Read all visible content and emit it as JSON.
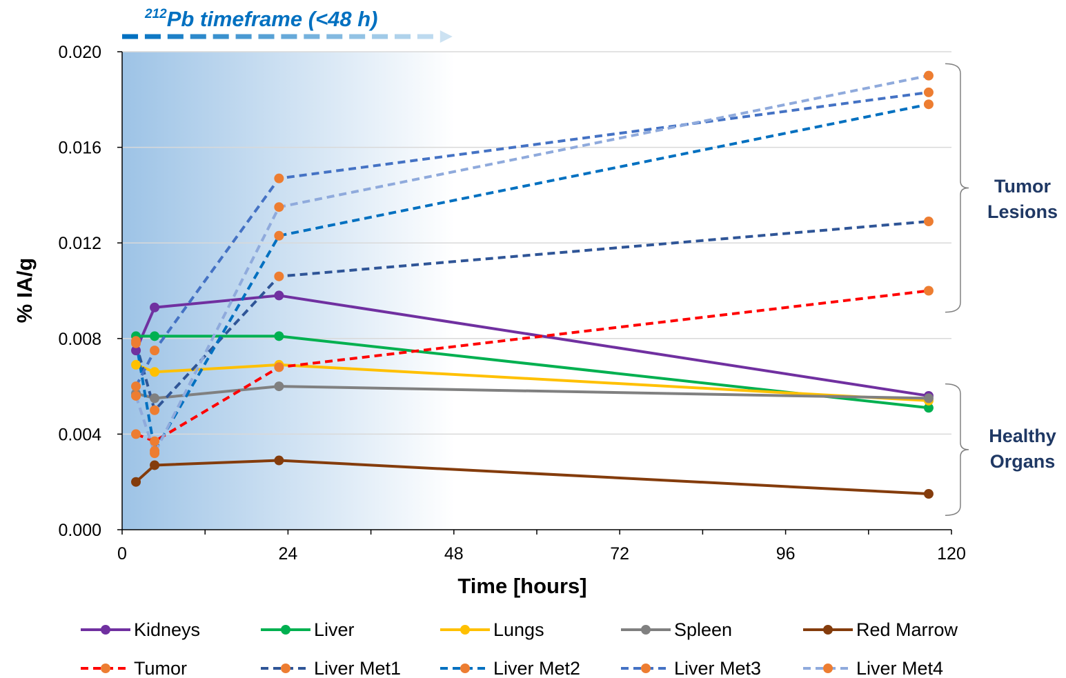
{
  "chart_data": {
    "type": "line",
    "xlabel": "Time [hours]",
    "ylabel": "% IA/g",
    "xlim": [
      0,
      120
    ],
    "ylim": [
      0,
      0.02
    ],
    "x_ticks": [
      "0",
      "24",
      "48",
      "72",
      "96",
      "120"
    ],
    "y_ticks": [
      "0.000",
      "0.004",
      "0.008",
      "0.012",
      "0.016",
      "0.020"
    ],
    "grid": "horizontal",
    "legend_position": "bottom",
    "banner": {
      "superscript": "212",
      "text": "Pb timeframe (<48 h)",
      "range_hours": [
        0,
        48
      ],
      "color": "#0070c0"
    },
    "groups": [
      {
        "label_line1": "Tumor",
        "label_line2": "Lesions",
        "range": [
          0.0091,
          0.0195
        ]
      },
      {
        "label_line1": "Healthy",
        "label_line2": "Organs",
        "range": [
          0.0006,
          0.0061
        ]
      }
    ],
    "series": [
      {
        "name": "Kidneys",
        "color": "#7030a0",
        "dash": false,
        "marker": "#7030a0",
        "x": [
          2,
          4.7,
          22.7,
          116.7
        ],
        "y": [
          0.0075,
          0.0093,
          0.0098,
          0.0056
        ]
      },
      {
        "name": "Liver",
        "color": "#00b050",
        "dash": false,
        "marker": "#00b050",
        "x": [
          2,
          4.7,
          22.7,
          116.7
        ],
        "y": [
          0.0081,
          0.0081,
          0.0081,
          0.0051
        ]
      },
      {
        "name": "Lungs",
        "color": "#ffc000",
        "dash": false,
        "marker": "#ffc000",
        "x": [
          2,
          4.7,
          22.7,
          116.7
        ],
        "y": [
          0.0069,
          0.0066,
          0.0069,
          0.0054
        ]
      },
      {
        "name": "Spleen",
        "color": "#808080",
        "dash": false,
        "marker": "#808080",
        "x": [
          2,
          4.7,
          22.7,
          116.7
        ],
        "y": [
          0.0057,
          0.0055,
          0.006,
          0.0055
        ]
      },
      {
        "name": "Red Marrow",
        "color": "#843c0c",
        "dash": false,
        "marker": "#843c0c",
        "x": [
          2,
          4.7,
          22.7,
          116.7
        ],
        "y": [
          0.002,
          0.0027,
          0.0029,
          0.0015
        ]
      },
      {
        "name": "Tumor",
        "color": "#ff0000",
        "dash": true,
        "marker": "#ed7d31",
        "x": [
          2,
          4.7,
          22.7,
          116.7
        ],
        "y": [
          0.004,
          0.0037,
          0.0068,
          0.01
        ]
      },
      {
        "name": "Liver Met1",
        "color": "#2f5597",
        "dash": true,
        "marker": "#ed7d31",
        "x": [
          2,
          4.7,
          22.7,
          116.7
        ],
        "y": [
          0.0078,
          0.005,
          0.0106,
          0.0129
        ]
      },
      {
        "name": "Liver Met2",
        "color": "#0070c0",
        "dash": true,
        "marker": "#ed7d31",
        "x": [
          2,
          4.7,
          22.7,
          116.7
        ],
        "y": [
          0.0079,
          0.0033,
          0.0123,
          0.0178
        ]
      },
      {
        "name": "Liver Met3",
        "color": "#4472c4",
        "dash": true,
        "marker": "#ed7d31",
        "x": [
          2,
          4.7,
          22.7,
          116.7
        ],
        "y": [
          0.006,
          0.0075,
          0.0147,
          0.0183
        ]
      },
      {
        "name": "Liver Met4",
        "color": "#8faadc",
        "dash": true,
        "marker": "#ed7d31",
        "x": [
          2,
          4.7,
          22.7,
          116.7
        ],
        "y": [
          0.0056,
          0.0032,
          0.0135,
          0.019
        ]
      }
    ]
  }
}
